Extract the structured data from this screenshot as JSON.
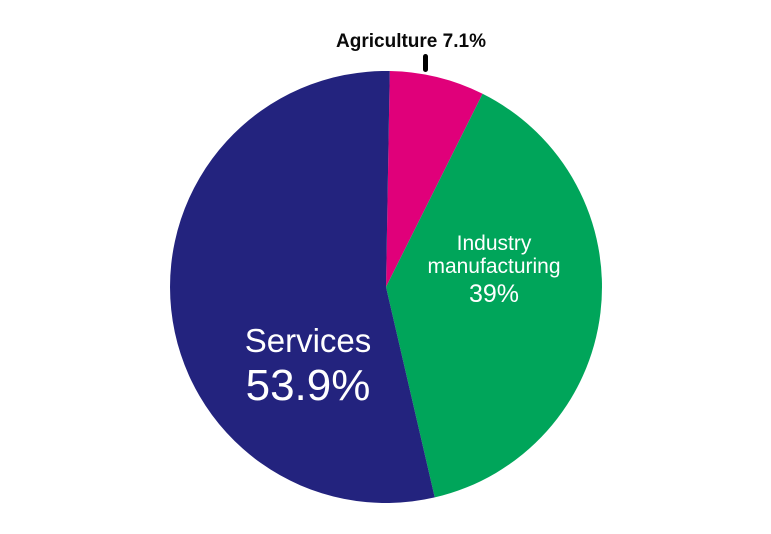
{
  "chart_data": {
    "type": "pie",
    "slices": [
      {
        "name": "Agriculture",
        "value": 7.1,
        "value_label": "7.1%",
        "color": "#e0007a"
      },
      {
        "name": "Industry manufacturing",
        "name_lines": [
          "Industry",
          "manufacturing"
        ],
        "value": 39,
        "value_label": "39%",
        "color": "#00a55a"
      },
      {
        "name": "Services",
        "value": 53.9,
        "value_label": "53.9%",
        "color": "#23237e"
      }
    ],
    "start": "top",
    "direction": "clockwise"
  }
}
